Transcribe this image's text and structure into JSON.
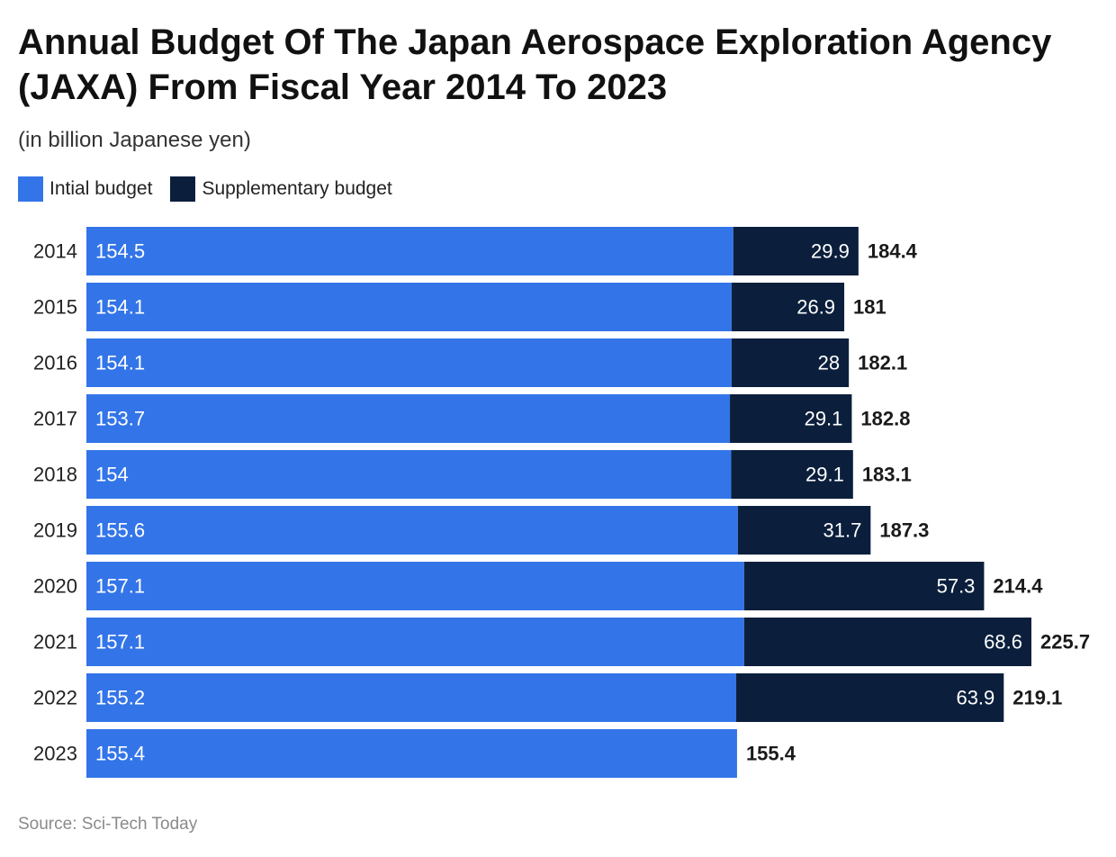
{
  "title": "Annual Budget Of The Japan Aerospace Exploration Agency (JAXA) From Fiscal Year 2014 To 2023",
  "subtitle": "(in billion Japanese yen)",
  "source": "Source: Sci-Tech Today",
  "colors": {
    "initial": "#3375e8",
    "supplementary": "#0b1f3c",
    "label_light": "#ffffff",
    "label_dark": "#1a1a1a"
  },
  "chart_data": {
    "type": "bar",
    "orientation": "horizontal",
    "stacked": true,
    "title": "Annual Budget Of The Japan Aerospace Exploration Agency (JAXA) From Fiscal Year 2014 To 2023",
    "subtitle": "(in billion Japanese yen)",
    "xlabel": "",
    "ylabel": "",
    "legend_position": "top-left",
    "grid": false,
    "xlim": [
      0,
      225.7
    ],
    "categories": [
      "2014",
      "2015",
      "2016",
      "2017",
      "2018",
      "2019",
      "2020",
      "2021",
      "2022",
      "2023"
    ],
    "series": [
      {
        "name": "Intial budget",
        "values": [
          154.5,
          154.1,
          154.1,
          153.7,
          154,
          155.6,
          157.1,
          157.1,
          155.2,
          155.4
        ]
      },
      {
        "name": "Supplementary budget",
        "values": [
          29.9,
          26.9,
          28,
          29.1,
          29.1,
          31.7,
          57.3,
          68.6,
          63.9,
          null
        ]
      }
    ],
    "totals": [
      "184.4",
      "181",
      "182.1",
      "182.8",
      "183.1",
      "187.3",
      "214.4",
      "225.7",
      "219.1",
      "155.4"
    ]
  }
}
